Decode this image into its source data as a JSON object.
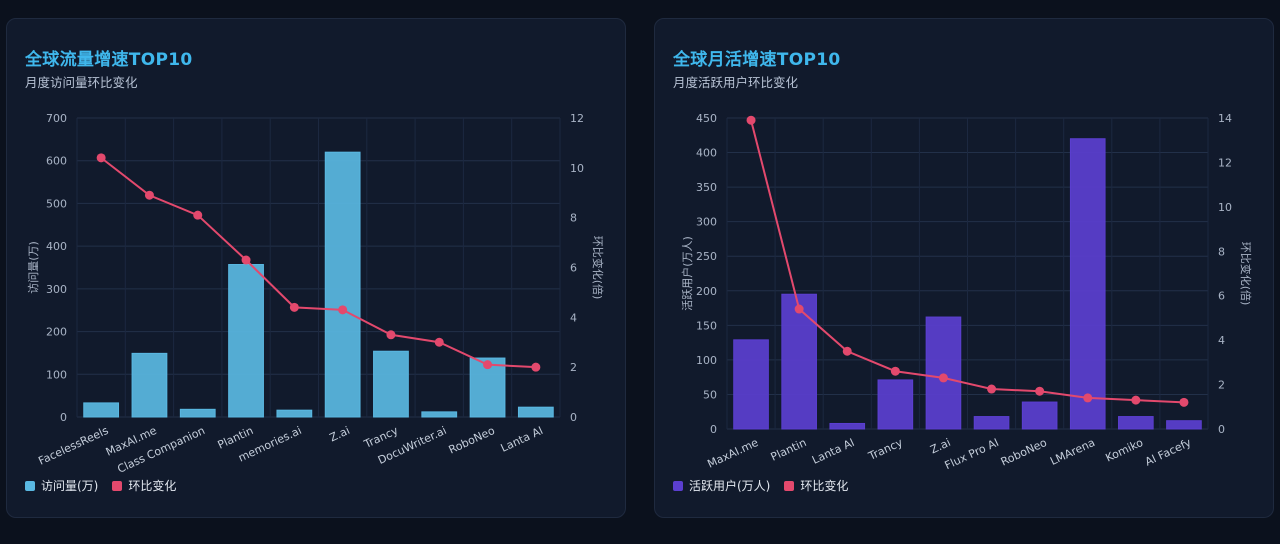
{
  "charts": [
    {
      "title": "全球流量增速TOP10",
      "subtitle": "月度访问量环比变化",
      "legend": [
        "访问量(万)",
        "环比变化"
      ],
      "bar_color": "#5ab8e2",
      "line_color": "#e3496d"
    },
    {
      "title": "全球月活增速TOP10",
      "subtitle": "月度活跃用户环比变化",
      "legend": [
        "活跃用户(万人)",
        "环比变化"
      ],
      "bar_color": "#5b3fd0",
      "line_color": "#e3496d"
    }
  ],
  "chart_data": [
    {
      "type": "bar",
      "categories": [
        "FacelessReels",
        "MaxAI.me",
        "Class Companion",
        "Plantin",
        "memories.ai",
        "Z.ai",
        "Trancy",
        "DocuWriter.ai",
        "RoboNeo",
        "Lanta AI"
      ],
      "series": [
        {
          "name": "访问量(万)",
          "type": "bar",
          "axis": "left",
          "values": [
            33,
            149,
            18,
            357,
            16,
            620,
            154,
            12,
            138,
            23
          ]
        },
        {
          "name": "环比变化",
          "type": "line",
          "axis": "right",
          "values": [
            10.4,
            8.9,
            8.1,
            6.3,
            4.4,
            4.3,
            3.3,
            3.0,
            2.1,
            2.0
          ]
        }
      ],
      "ylabel": "访问量(万)",
      "y2label": "环比变化(倍)",
      "ylim": [
        0,
        700
      ],
      "yticks": [
        0,
        100,
        200,
        300,
        400,
        500,
        600,
        700
      ],
      "y2lim": [
        0,
        12
      ],
      "y2ticks": [
        0,
        2,
        4,
        6,
        8,
        10,
        12
      ],
      "grid": true,
      "legend_position": "bottom-left"
    },
    {
      "type": "bar",
      "categories": [
        "MaxAI.me",
        "Plantin",
        "Lanta AI",
        "Trancy",
        "Z.ai",
        "Flux Pro AI",
        "RoboNeo",
        "LMArena",
        "Komiko",
        "AI Facefy"
      ],
      "series": [
        {
          "name": "活跃用户(万人)",
          "type": "bar",
          "axis": "left",
          "values": [
            129,
            195,
            8,
            71,
            162,
            18,
            39,
            420,
            18,
            12
          ]
        },
        {
          "name": "环比变化",
          "type": "line",
          "axis": "right",
          "values": [
            13.9,
            5.4,
            3.5,
            2.6,
            2.3,
            1.8,
            1.7,
            1.4,
            1.3,
            1.2
          ]
        }
      ],
      "ylabel": "活跃用户(万人)",
      "y2label": "环比变化(倍)",
      "ylim": [
        0,
        450
      ],
      "yticks": [
        0,
        50,
        100,
        150,
        200,
        250,
        300,
        350,
        400,
        450
      ],
      "y2lim": [
        0,
        14
      ],
      "y2ticks": [
        0,
        2,
        4,
        6,
        8,
        10,
        12,
        14
      ],
      "grid": true,
      "legend_position": "bottom-left"
    }
  ]
}
